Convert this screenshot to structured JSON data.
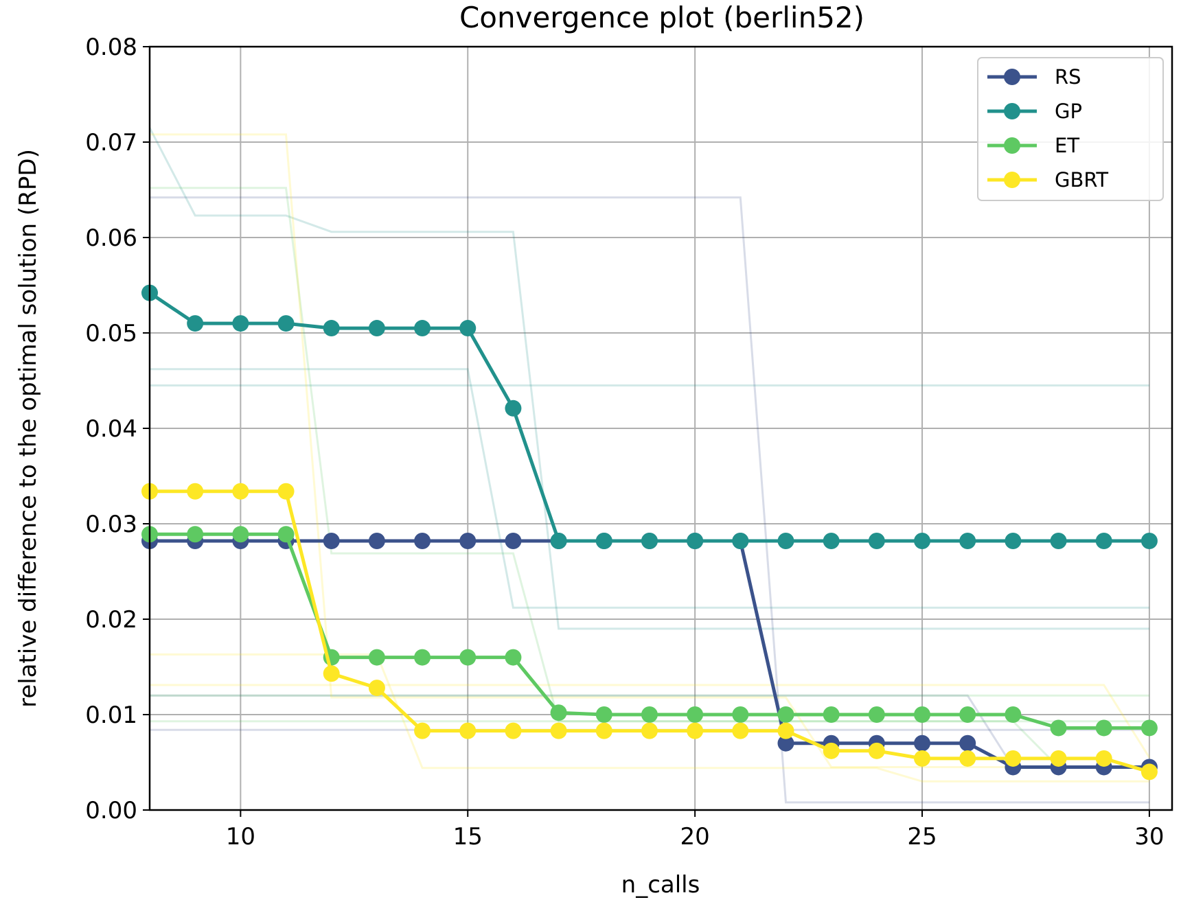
{
  "chart_data": {
    "type": "line",
    "title": "Convergence plot (berlin52)",
    "xlabel": "n_calls",
    "ylabel": "relative difference to the optimal solution (RPD)",
    "xlim": [
      8,
      30.5
    ],
    "ylim": [
      0,
      0.08
    ],
    "x_ticks": [
      10,
      15,
      20,
      25,
      30
    ],
    "x_tick_labels": [
      "10",
      "15",
      "20",
      "25",
      "30"
    ],
    "y_ticks": [
      0,
      0.01,
      0.02,
      0.03,
      0.04,
      0.05,
      0.06,
      0.07,
      0.08
    ],
    "y_tick_labels": [
      "0.00",
      "0.01",
      "0.02",
      "0.03",
      "0.04",
      "0.05",
      "0.06",
      "0.07",
      "0.08"
    ],
    "grid": true,
    "legend_position": "top-right",
    "x": [
      8,
      9,
      10,
      11,
      12,
      13,
      14,
      15,
      16,
      17,
      18,
      19,
      20,
      21,
      22,
      23,
      24,
      25,
      26,
      27,
      28,
      29,
      30
    ],
    "series": [
      {
        "name": "RS",
        "color": "#3b528b",
        "values": [
          0.0282,
          0.0282,
          0.0282,
          0.0282,
          0.0282,
          0.0282,
          0.0282,
          0.0282,
          0.0282,
          0.0282,
          0.0282,
          0.0282,
          0.0282,
          0.0282,
          0.007,
          0.007,
          0.007,
          0.007,
          0.007,
          0.0045,
          0.0045,
          0.0045,
          0.0045
        ],
        "runs": [
          [
            0.0642,
            0.0642,
            0.0642,
            0.0642,
            0.0642,
            0.0642,
            0.0642,
            0.0642,
            0.0642,
            0.0642,
            0.0642,
            0.0642,
            0.0642,
            0.0642,
            0.0008,
            0.0008,
            0.0008,
            0.0008,
            0.0008,
            0.0008,
            0.0008,
            0.0008,
            0.0008
          ],
          [
            0.012,
            0.012,
            0.012,
            0.012,
            0.012,
            0.012,
            0.012,
            0.012,
            0.012,
            0.012,
            0.012,
            0.012,
            0.012,
            0.012,
            0.012,
            0.012,
            0.012,
            0.012,
            0.012,
            0.0045,
            0.0045,
            0.0045,
            0.0045
          ],
          [
            0.0084,
            0.0084,
            0.0084,
            0.0084,
            0.0084,
            0.0084,
            0.0084,
            0.0084,
            0.0084,
            0.0084,
            0.0084,
            0.0084,
            0.0084,
            0.0084,
            0.0084,
            0.0084,
            0.0084,
            0.0084,
            0.0084,
            0.0084,
            0.0084,
            0.0084,
            0.0084
          ]
        ]
      },
      {
        "name": "GP",
        "color": "#21918c",
        "values": [
          0.0542,
          0.051,
          0.051,
          0.051,
          0.0505,
          0.0505,
          0.0505,
          0.0505,
          0.0421,
          0.0282,
          0.0282,
          0.0282,
          0.0282,
          0.0282,
          0.0282,
          0.0282,
          0.0282,
          0.0282,
          0.0282,
          0.0282,
          0.0282,
          0.0282,
          0.0282
        ],
        "runs": [
          [
            0.0715,
            0.0623,
            0.0623,
            0.0623,
            0.0606,
            0.0606,
            0.0606,
            0.0606,
            0.0606,
            0.019,
            0.019,
            0.019,
            0.019,
            0.019,
            0.019,
            0.019,
            0.019,
            0.019,
            0.019,
            0.019,
            0.019,
            0.019,
            0.019
          ],
          [
            0.0462,
            0.0462,
            0.0462,
            0.0462,
            0.0462,
            0.0462,
            0.0462,
            0.0462,
            0.0212,
            0.0212,
            0.0212,
            0.0212,
            0.0212,
            0.0212,
            0.0212,
            0.0212,
            0.0212,
            0.0212,
            0.0212,
            0.0212,
            0.0212,
            0.0212,
            0.0212
          ],
          [
            0.0445,
            0.0445,
            0.0445,
            0.0445,
            0.0445,
            0.0445,
            0.0445,
            0.0445,
            0.0445,
            0.0445,
            0.0445,
            0.0445,
            0.0445,
            0.0445,
            0.0445,
            0.0445,
            0.0445,
            0.0445,
            0.0445,
            0.0445,
            0.0445,
            0.0445,
            0.0445
          ]
        ]
      },
      {
        "name": "ET",
        "color": "#5ec962",
        "values": [
          0.0289,
          0.0289,
          0.0289,
          0.0289,
          0.016,
          0.016,
          0.016,
          0.016,
          0.016,
          0.0102,
          0.01,
          0.01,
          0.01,
          0.01,
          0.01,
          0.01,
          0.01,
          0.01,
          0.01,
          0.01,
          0.0086,
          0.0086,
          0.0086
        ],
        "runs": [
          [
            0.0652,
            0.0652,
            0.0652,
            0.0652,
            0.0269,
            0.0269,
            0.0269,
            0.0269,
            0.0269,
            0.0093,
            0.0093,
            0.0093,
            0.0093,
            0.0093,
            0.0093,
            0.0093,
            0.0093,
            0.0093,
            0.0093,
            0.0093,
            0.0093,
            0.0093,
            0.0093
          ],
          [
            0.012,
            0.012,
            0.012,
            0.012,
            0.012,
            0.012,
            0.012,
            0.012,
            0.012,
            0.012,
            0.012,
            0.012,
            0.012,
            0.012,
            0.012,
            0.012,
            0.012,
            0.012,
            0.012,
            0.012,
            0.012,
            0.012,
            0.012
          ],
          [
            0.0093,
            0.0093,
            0.0093,
            0.0093,
            0.0093,
            0.0093,
            0.0093,
            0.0093,
            0.0093,
            0.0093,
            0.0093,
            0.0093,
            0.0093,
            0.0093,
            0.0093,
            0.0093,
            0.0093,
            0.0093,
            0.0093,
            0.0093,
            0.0045,
            0.0045,
            0.0045
          ]
        ]
      },
      {
        "name": "GBRT",
        "color": "#fde725",
        "values": [
          0.0334,
          0.0334,
          0.0334,
          0.0334,
          0.0143,
          0.0128,
          0.0083,
          0.0083,
          0.0083,
          0.0083,
          0.0083,
          0.0083,
          0.0083,
          0.0083,
          0.0083,
          0.0062,
          0.0062,
          0.0054,
          0.0054,
          0.0054,
          0.0054,
          0.0054,
          0.004
        ],
        "runs": [
          [
            0.0708,
            0.0708,
            0.0708,
            0.0708,
            0.0118,
            0.0118,
            0.0118,
            0.0118,
            0.0118,
            0.0118,
            0.0118,
            0.0118,
            0.0118,
            0.0118,
            0.0118,
            0.0045,
            0.0045,
            0.0045,
            0.0045,
            0.0045,
            0.0045,
            0.0045,
            0.0045
          ],
          [
            0.0163,
            0.0163,
            0.0163,
            0.0163,
            0.0163,
            0.0163,
            0.0044,
            0.0044,
            0.0044,
            0.0044,
            0.0044,
            0.0044,
            0.0044,
            0.0044,
            0.0044,
            0.0044,
            0.0044,
            0.003,
            0.003,
            0.003,
            0.003,
            0.003,
            0.003
          ],
          [
            0.0131,
            0.0131,
            0.0131,
            0.0131,
            0.0131,
            0.0131,
            0.0131,
            0.0131,
            0.0131,
            0.0131,
            0.0131,
            0.0131,
            0.0131,
            0.0131,
            0.0131,
            0.0131,
            0.0131,
            0.0131,
            0.0131,
            0.0131,
            0.0131,
            0.0131,
            0.0055
          ]
        ]
      }
    ]
  }
}
